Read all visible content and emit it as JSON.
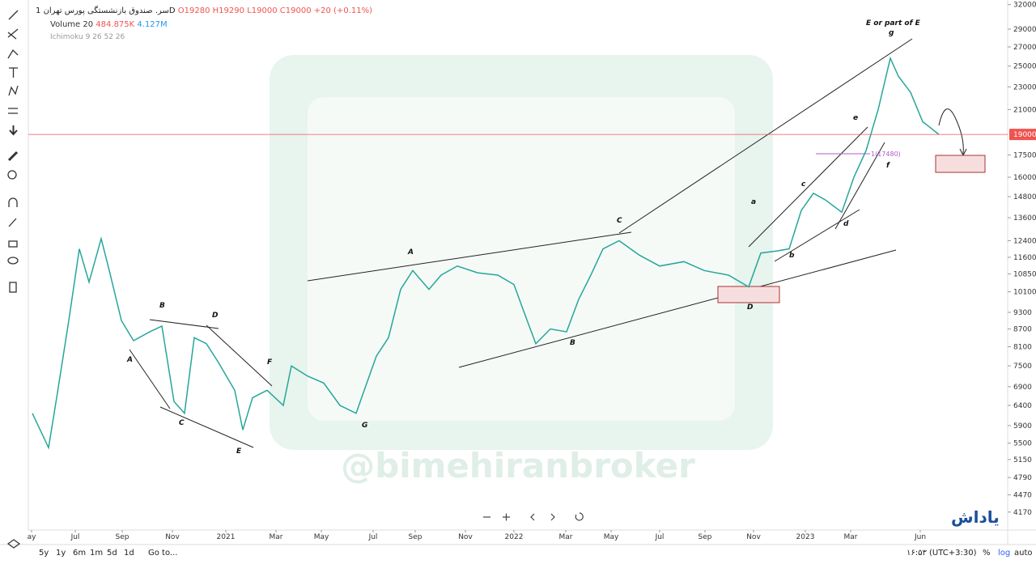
{
  "header": {
    "symbol": "سر. صندوق بازنشستگی",
    "exchange": "پورس تهران",
    "interval": "1D",
    "open": "O19280",
    "high": "H19290",
    "low": "L19000",
    "close": "C19000",
    "change": "+20 (+0.11%)",
    "volume_name": "Volume 20",
    "volume_value": "484.875K",
    "volume_ma": "4.127M",
    "ichimoku": "Ichimoku 9 26 52 26"
  },
  "chart_data": {
    "type": "line",
    "log": true,
    "color": "#26a69a",
    "x": [
      2.5,
      12.5,
      17.5,
      25,
      31.5,
      37.5,
      45,
      50,
      57.5,
      65,
      75,
      82.5,
      90,
      96.5,
      102.5,
      110,
      117.5,
      127.5,
      132.5,
      138.5,
      147.5,
      157.5,
      162.5,
      172.5,
      182.5,
      192.5,
      202.5,
      207.5,
      215,
      222.5,
      230,
      237.5,
      247.5,
      255,
      265,
      277.5,
      290,
      300,
      307.5,
      313.5,
      322.5,
      332.5,
      340,
      347.5,
      355,
      365,
      377.5,
      390,
      405,
      417.5,
      432.5,
      445,
      452.5,
      462.5,
      470,
      477.5,
      485,
      492.5,
      502.5,
      510,
      517.5,
      525,
      532.5,
      537.5,
      545,
      552.5,
      562.5
    ],
    "values": [
      6200,
      5400,
      6600,
      9000,
      12000,
      10500,
      12500,
      11000,
      9000,
      8300,
      8600,
      8800,
      6500,
      6200,
      8400,
      8200,
      7600,
      6800,
      5800,
      6600,
      6800,
      6400,
      7500,
      7200,
      7000,
      6400,
      6200,
      6800,
      7800,
      8400,
      10200,
      11000,
      10200,
      10800,
      11200,
      10900,
      10800,
      10400,
      9100,
      8200,
      8700,
      8600,
      9800,
      10800,
      12000,
      12400,
      11700,
      11200,
      11400,
      11000,
      10800,
      10300,
      11800,
      11900,
      12000,
      14000,
      15000,
      14600,
      13900,
      16000,
      17800,
      21000,
      25800,
      24000,
      22500,
      20000,
      19000
    ],
    "xlim": [
      0,
      605
    ],
    "xticks": [
      {
        "value": 2,
        "label": "ay"
      },
      {
        "value": 29,
        "label": "Jul"
      },
      {
        "value": 58,
        "label": "Sep"
      },
      {
        "value": 89,
        "label": "Nov"
      },
      {
        "value": 122,
        "label": "2021"
      },
      {
        "value": 153,
        "label": "Mar"
      },
      {
        "value": 181,
        "label": "May"
      },
      {
        "value": 213,
        "label": "Jul"
      },
      {
        "value": 239,
        "label": "Sep"
      },
      {
        "value": 270,
        "label": "Nov"
      },
      {
        "value": 300,
        "label": "2022"
      },
      {
        "value": 332,
        "label": "Mar"
      },
      {
        "value": 360,
        "label": "May"
      },
      {
        "value": 390,
        "label": "Jul"
      },
      {
        "value": 418,
        "label": "Sep"
      },
      {
        "value": 448,
        "label": "Nov"
      },
      {
        "value": 480,
        "label": "2023"
      },
      {
        "value": 508,
        "label": "Mar"
      },
      {
        "value": 551,
        "label": "Jun"
      }
    ],
    "ylim": [
      3880,
      32600
    ],
    "yticks": [
      32000,
      29000,
      27000,
      25000,
      23000,
      21000,
      17500,
      16000,
      14800,
      13600,
      12400,
      11600,
      10850,
      10100,
      9300,
      8700,
      8100,
      7500,
      6900,
      6400,
      5900,
      5500,
      5150,
      4790,
      4470,
      4170
    ],
    "last_price": 19000,
    "last_price_color": "#ef5350",
    "annotations": [
      "A",
      "B",
      "C",
      "D",
      "E",
      "F",
      "G",
      "A",
      "B",
      "C",
      "D",
      "a",
      "b",
      "c",
      "d",
      "e",
      "f",
      "g",
      "E or part of E",
      "1(17480)"
    ],
    "watermark": "@bimehiranbroker",
    "logo": "یاداش"
  },
  "footer": {
    "ranges": [
      "5y",
      "1y",
      "6m",
      "1m",
      "5d",
      "1d"
    ],
    "goto": "Go to...",
    "time": "۱۶:۵۳ (UTC+3:30)",
    "percent": "%",
    "log": "log",
    "auto": "auto"
  }
}
